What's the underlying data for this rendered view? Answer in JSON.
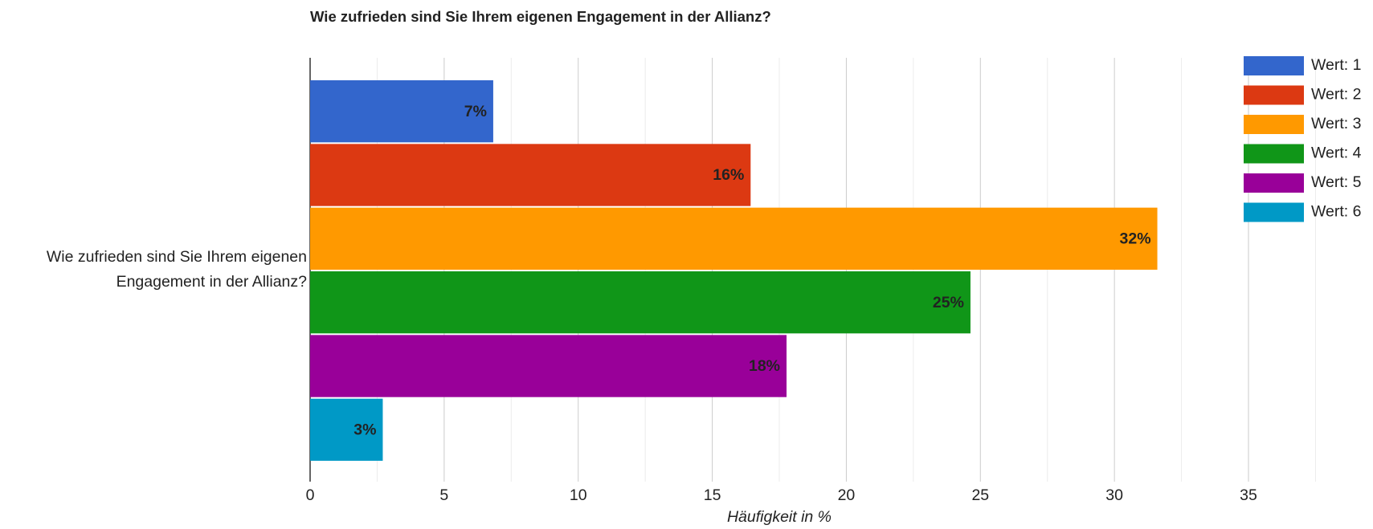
{
  "chart_data": {
    "type": "bar",
    "orientation": "horizontal",
    "title": "Wie zufrieden sind Sie Ihrem eigenen Engagement in der Allianz?",
    "xlabel": "Häufigkeit in %",
    "categories": [
      "Wie zufrieden sind Sie Ihrem eigenen Engagement in der Allianz?"
    ],
    "series": [
      {
        "name": "Wert: 1",
        "color": "#3366cc",
        "label_color": "#ffffff",
        "values": [
          6.83
        ],
        "value_labels": [
          "7%"
        ]
      },
      {
        "name": "Wert: 2",
        "color": "#dc3912",
        "label_color": "#ffffff",
        "values": [
          16.43
        ],
        "value_labels": [
          "16%"
        ]
      },
      {
        "name": "Wert: 3",
        "color": "#ff9900",
        "label_color": "#404040",
        "values": [
          31.6
        ],
        "value_labels": [
          "32%"
        ]
      },
      {
        "name": "Wert: 4",
        "color": "#109618",
        "label_color": "#ffffff",
        "values": [
          24.63
        ],
        "value_labels": [
          "25%"
        ]
      },
      {
        "name": "Wert: 5",
        "color": "#990099",
        "label_color": "#ffffff",
        "values": [
          17.77
        ],
        "value_labels": [
          "18%"
        ]
      },
      {
        "name": "Wert: 6",
        "color": "#0099c6",
        "label_color": "#ffffff",
        "values": [
          2.71
        ],
        "value_labels": [
          "3%"
        ]
      }
    ],
    "xlim": [
      0,
      37.5
    ],
    "xticks": [
      0,
      5,
      10,
      15,
      20,
      25,
      30,
      35
    ],
    "minor_xticks": [
      2.5,
      7.5,
      12.5,
      17.5,
      22.5,
      27.5,
      32.5,
      37.5
    ],
    "grid": true,
    "legend": "right"
  }
}
